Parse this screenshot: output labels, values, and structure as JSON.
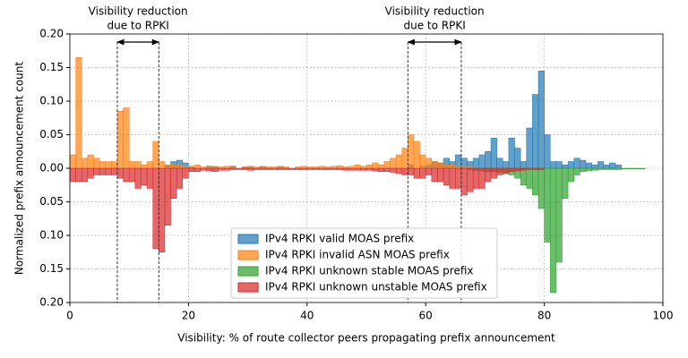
{
  "chart_data": {
    "type": "histogram",
    "xlabel": "Visibility: % of route collector peers propagating prefix announcement",
    "ylabel": "Normalized prefix announcement count",
    "xlim": [
      0,
      100
    ],
    "xticks": [
      0,
      20,
      40,
      60,
      80,
      100
    ],
    "ylim": [
      -0.2,
      0.2
    ],
    "yticks": [
      {
        "value": -0.2,
        "label": "0.20"
      },
      {
        "value": -0.15,
        "label": "0.15"
      },
      {
        "value": -0.1,
        "label": "0.10"
      },
      {
        "value": -0.05,
        "label": "0.05"
      },
      {
        "value": 0,
        "label": "0.00"
      },
      {
        "value": 0.05,
        "label": "0.05"
      },
      {
        "value": 0.1,
        "label": "0.10"
      },
      {
        "value": 0.15,
        "label": "0.15"
      },
      {
        "value": 0.2,
        "label": "0.20"
      }
    ],
    "grid": true,
    "legend": "lower center",
    "annotations": [
      {
        "lines": [
          "Visibility reduction",
          "due to RPKI"
        ],
        "x": [
          8,
          15
        ]
      },
      {
        "lines": [
          "Visibility reduction",
          "due to RPKI"
        ],
        "x": [
          57,
          66
        ]
      }
    ],
    "bins": [
      0,
      1,
      2,
      3,
      4,
      5,
      6,
      7,
      8,
      9,
      10,
      11,
      12,
      13,
      14,
      15,
      16,
      17,
      18,
      19,
      20,
      21,
      22,
      23,
      24,
      25,
      26,
      27,
      28,
      29,
      30,
      31,
      32,
      33,
      34,
      35,
      36,
      37,
      38,
      39,
      40,
      41,
      42,
      43,
      44,
      45,
      46,
      47,
      48,
      49,
      50,
      51,
      52,
      53,
      54,
      55,
      56,
      57,
      58,
      59,
      60,
      61,
      62,
      63,
      64,
      65,
      66,
      67,
      68,
      69,
      70,
      71,
      72,
      73,
      74,
      75,
      76,
      77,
      78,
      79,
      80,
      81,
      82,
      83,
      84,
      85,
      86,
      87,
      88,
      89,
      90,
      91,
      92,
      93,
      94,
      95,
      96,
      97,
      98,
      99,
      100
    ],
    "series": [
      {
        "name": "IPv4 RPKI valid MOAS prefix",
        "color": "#1f77b4",
        "values": [
          0,
          0,
          0,
          0,
          0,
          0,
          0,
          0,
          0,
          0,
          0,
          0,
          0,
          0,
          0,
          0,
          0.005,
          0.01,
          0.012,
          0.008,
          0.002,
          0,
          0,
          0.003,
          0.002,
          0,
          0,
          0.003,
          0,
          0.002,
          0.003,
          0,
          0.002,
          0,
          0,
          0.003,
          0,
          0,
          0,
          0,
          0,
          0,
          0,
          0,
          0,
          0,
          0,
          0,
          0,
          0,
          0,
          0,
          0,
          0,
          0,
          0,
          0,
          0.005,
          0,
          0.003,
          0.005,
          0.01,
          0.008,
          0.015,
          0.01,
          0.02,
          0.015,
          0.01,
          0.015,
          0.02,
          0.025,
          0.045,
          0.015,
          0.01,
          0.045,
          0.03,
          0.01,
          0.06,
          0.11,
          0.145,
          0.05,
          0.01,
          0.01,
          0.005,
          0.01,
          0.015,
          0.012,
          0.008,
          0.005,
          0.01,
          0.005,
          0.008,
          0.005,
          0,
          0,
          0,
          0,
          0,
          0,
          0
        ]
      },
      {
        "name": "IPv4 RPKI invalid ASN MOAS prefix",
        "color": "#ff7f0e",
        "values": [
          0.02,
          0.165,
          0.015,
          0.02,
          0.015,
          0.01,
          0.01,
          0.01,
          0.085,
          0.09,
          0.01,
          0.01,
          0.005,
          0.01,
          0.04,
          0.01,
          0.005,
          0.005,
          0.005,
          0.003,
          0.003,
          0.005,
          0.002,
          0.002,
          0.003,
          0.002,
          0.003,
          0.002,
          0,
          0.002,
          0.003,
          0.002,
          0.003,
          0.002,
          0.002,
          0.003,
          0.002,
          0,
          0.002,
          0.003,
          0.002,
          0.002,
          0.003,
          0.002,
          0.003,
          0.004,
          0.002,
          0.003,
          0.005,
          0.003,
          0.005,
          0.008,
          0.005,
          0.01,
          0.015,
          0.02,
          0.03,
          0.05,
          0.04,
          0.02,
          0.015,
          0.01,
          0.008,
          0.005,
          0.005,
          0.003,
          0.003,
          0.002,
          0,
          0,
          0,
          0,
          0,
          0,
          0,
          0,
          0,
          0,
          0,
          0,
          0,
          0,
          0,
          0,
          0,
          0,
          0,
          0,
          0,
          0,
          0,
          0,
          0,
          0,
          0,
          0,
          0,
          0,
          0,
          0
        ]
      },
      {
        "name": "IPv4 RPKI unknown stable MOAS prefix",
        "color": "#2ca02c",
        "values": [
          0,
          0,
          0,
          0,
          0,
          0,
          0,
          0,
          0,
          0,
          0,
          0,
          0,
          0,
          0,
          0,
          0,
          0,
          0,
          0,
          0,
          0,
          0,
          0,
          0,
          0,
          0,
          0,
          0,
          0,
          0,
          0,
          0,
          0,
          0,
          0,
          0,
          0,
          0,
          0,
          0,
          0,
          0,
          0,
          0,
          0,
          0,
          0,
          0,
          0,
          0,
          0,
          0,
          0,
          0,
          0,
          0,
          0,
          0,
          0,
          0,
          0,
          0,
          0,
          0,
          0,
          0,
          -0.002,
          -0.003,
          -0.004,
          -0.005,
          -0.005,
          -0.006,
          -0.008,
          -0.01,
          -0.015,
          -0.025,
          -0.03,
          -0.04,
          -0.06,
          -0.11,
          -0.185,
          -0.14,
          -0.045,
          -0.02,
          -0.01,
          -0.005,
          -0.004,
          -0.003,
          -0.002,
          -0.002,
          -0.002,
          -0.002,
          -0.001,
          -0.001,
          -0.001,
          -0.001,
          0,
          0,
          0
        ]
      },
      {
        "name": "IPv4 RPKI unknown unstable MOAS prefix",
        "color": "#d62728",
        "values": [
          -0.02,
          -0.02,
          -0.02,
          -0.015,
          -0.01,
          -0.01,
          -0.01,
          -0.01,
          -0.015,
          -0.02,
          -0.02,
          -0.03,
          -0.025,
          -0.03,
          -0.12,
          -0.125,
          -0.085,
          -0.045,
          -0.03,
          -0.015,
          -0.005,
          -0.005,
          -0.003,
          -0.004,
          -0.005,
          -0.003,
          -0.003,
          -0.002,
          -0.002,
          -0.002,
          -0.003,
          -0.002,
          -0.002,
          -0.002,
          -0.002,
          -0.002,
          -0.002,
          -0.002,
          -0.002,
          -0.002,
          -0.002,
          -0.002,
          -0.002,
          -0.002,
          -0.002,
          -0.002,
          -0.003,
          -0.003,
          -0.003,
          -0.003,
          -0.003,
          -0.004,
          -0.005,
          -0.005,
          -0.006,
          -0.008,
          -0.01,
          -0.01,
          -0.015,
          -0.015,
          -0.01,
          -0.02,
          -0.02,
          -0.025,
          -0.03,
          -0.03,
          -0.04,
          -0.035,
          -0.03,
          -0.03,
          -0.02,
          -0.015,
          -0.01,
          -0.008,
          -0.005,
          -0.004,
          -0.003,
          -0.002,
          -0.002,
          -0.002,
          0,
          0,
          0,
          0,
          0,
          0,
          0,
          0,
          0,
          0,
          0,
          0,
          0,
          0,
          0,
          0,
          0,
          0,
          0,
          0
        ]
      }
    ]
  }
}
